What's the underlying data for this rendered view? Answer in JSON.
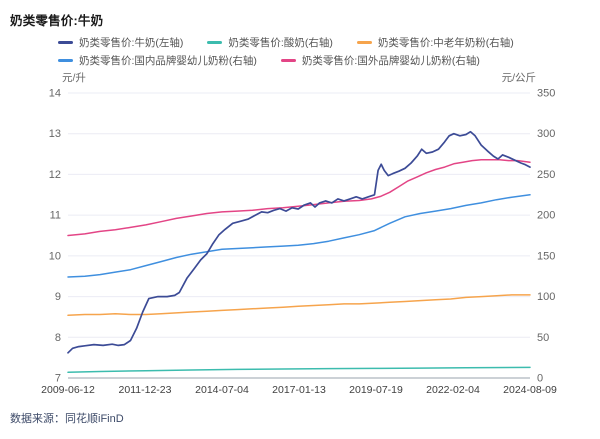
{
  "title": "奶类零售价:牛奶",
  "source": "数据来源：同花顺iFinD",
  "axes": {
    "left_unit": "元/升",
    "right_unit": "元/公斤",
    "left_ticks": [
      14,
      13,
      12,
      11,
      10,
      9,
      8,
      7
    ],
    "right_ticks": [
      350,
      300,
      250,
      200,
      150,
      100,
      50,
      0
    ],
    "x_labels": [
      "2009-06-12",
      "2011-12-23",
      "2014-07-04",
      "2017-01-13",
      "2019-07-19",
      "2022-02-04",
      "2024-08-09"
    ]
  },
  "colors": {
    "milk": "#3c4b96",
    "yogurt": "#3cbcae",
    "elder_powder": "#f6a44c",
    "domestic_infant": "#3f8fdf",
    "foreign_infant": "#e34586",
    "grid": "#ebecf4",
    "baseline": "#9aa3ad",
    "tick_text": "#666666",
    "x_tick_text": "#3f3f3f"
  },
  "chart_data": {
    "type": "line",
    "title": "奶类零售价:牛奶",
    "x_unit": "decimal_year",
    "x_range": [
      2009.45,
      2024.6
    ],
    "x_tick_labels": [
      "2009-06-12",
      "2011-12-23",
      "2014-07-04",
      "2017-01-13",
      "2019-07-19",
      "2022-02-04",
      "2024-08-09"
    ],
    "left_axis": {
      "label": "元/升",
      "range": [
        7,
        14
      ]
    },
    "right_axis": {
      "label": "元/公斤",
      "range": [
        0,
        350
      ]
    },
    "grid": true,
    "legend_position": "top",
    "series": [
      {
        "name": "奶类零售价:牛奶(左轴)",
        "axis": "left",
        "color": "#3c4b96",
        "legend_row": 1,
        "points": [
          [
            2009.45,
            7.62
          ],
          [
            2009.6,
            7.73
          ],
          [
            2009.8,
            7.77
          ],
          [
            2010.0,
            7.79
          ],
          [
            2010.3,
            7.82
          ],
          [
            2010.6,
            7.8
          ],
          [
            2010.9,
            7.83
          ],
          [
            2011.1,
            7.8
          ],
          [
            2011.3,
            7.82
          ],
          [
            2011.5,
            7.92
          ],
          [
            2011.7,
            8.22
          ],
          [
            2011.9,
            8.62
          ],
          [
            2012.1,
            8.95
          ],
          [
            2012.4,
            9.0
          ],
          [
            2012.7,
            9.0
          ],
          [
            2012.95,
            9.03
          ],
          [
            2013.1,
            9.1
          ],
          [
            2013.35,
            9.45
          ],
          [
            2013.6,
            9.7
          ],
          [
            2013.8,
            9.9
          ],
          [
            2014.0,
            10.05
          ],
          [
            2014.2,
            10.3
          ],
          [
            2014.4,
            10.52
          ],
          [
            2014.6,
            10.65
          ],
          [
            2014.85,
            10.8
          ],
          [
            2015.1,
            10.85
          ],
          [
            2015.35,
            10.9
          ],
          [
            2015.6,
            11.0
          ],
          [
            2015.8,
            11.08
          ],
          [
            2016.0,
            11.06
          ],
          [
            2016.2,
            11.12
          ],
          [
            2016.4,
            11.16
          ],
          [
            2016.6,
            11.1
          ],
          [
            2016.8,
            11.18
          ],
          [
            2017.0,
            11.15
          ],
          [
            2017.2,
            11.25
          ],
          [
            2017.4,
            11.3
          ],
          [
            2017.55,
            11.2
          ],
          [
            2017.7,
            11.3
          ],
          [
            2017.9,
            11.35
          ],
          [
            2018.1,
            11.3
          ],
          [
            2018.3,
            11.4
          ],
          [
            2018.5,
            11.35
          ],
          [
            2018.7,
            11.4
          ],
          [
            2018.9,
            11.45
          ],
          [
            2019.1,
            11.4
          ],
          [
            2019.3,
            11.45
          ],
          [
            2019.5,
            11.5
          ],
          [
            2019.62,
            12.1
          ],
          [
            2019.72,
            12.25
          ],
          [
            2019.82,
            12.1
          ],
          [
            2019.95,
            11.97
          ],
          [
            2020.1,
            12.02
          ],
          [
            2020.3,
            12.08
          ],
          [
            2020.5,
            12.15
          ],
          [
            2020.7,
            12.28
          ],
          [
            2020.9,
            12.45
          ],
          [
            2021.05,
            12.62
          ],
          [
            2021.2,
            12.52
          ],
          [
            2021.4,
            12.55
          ],
          [
            2021.6,
            12.62
          ],
          [
            2021.8,
            12.8
          ],
          [
            2021.95,
            12.95
          ],
          [
            2022.1,
            13.0
          ],
          [
            2022.3,
            12.95
          ],
          [
            2022.5,
            12.98
          ],
          [
            2022.65,
            13.05
          ],
          [
            2022.8,
            12.95
          ],
          [
            2023.0,
            12.72
          ],
          [
            2023.2,
            12.58
          ],
          [
            2023.4,
            12.45
          ],
          [
            2023.55,
            12.38
          ],
          [
            2023.7,
            12.48
          ],
          [
            2023.9,
            12.42
          ],
          [
            2024.1,
            12.35
          ],
          [
            2024.3,
            12.28
          ],
          [
            2024.45,
            12.24
          ],
          [
            2024.6,
            12.18
          ]
        ]
      },
      {
        "name": "奶类零售价:酸奶(右轴)",
        "axis": "right",
        "color": "#3cbcae",
        "legend_row": 1,
        "points": [
          [
            2009.45,
            7
          ],
          [
            2010.5,
            8
          ],
          [
            2012,
            9
          ],
          [
            2013.5,
            9.8
          ],
          [
            2015,
            10.5
          ],
          [
            2016.5,
            11
          ],
          [
            2018,
            11.5
          ],
          [
            2019.5,
            11.8
          ],
          [
            2021,
            12.2
          ],
          [
            2022.5,
            12.6
          ],
          [
            2024.6,
            13
          ]
        ]
      },
      {
        "name": "奶类零售价:中老年奶粉(右轴)",
        "axis": "right",
        "color": "#f6a44c",
        "legend_row": 1,
        "points": [
          [
            2009.45,
            77
          ],
          [
            2010,
            78
          ],
          [
            2010.5,
            78
          ],
          [
            2011,
            79
          ],
          [
            2011.5,
            78
          ],
          [
            2012,
            78
          ],
          [
            2012.5,
            79
          ],
          [
            2013,
            80
          ],
          [
            2013.5,
            81
          ],
          [
            2014,
            82
          ],
          [
            2014.5,
            83
          ],
          [
            2015,
            84
          ],
          [
            2015.5,
            85
          ],
          [
            2016,
            86
          ],
          [
            2016.5,
            87
          ],
          [
            2017,
            88
          ],
          [
            2017.5,
            89
          ],
          [
            2018,
            90
          ],
          [
            2018.5,
            91
          ],
          [
            2019,
            91
          ],
          [
            2019.5,
            92
          ],
          [
            2020,
            93
          ],
          [
            2020.5,
            94
          ],
          [
            2021,
            95
          ],
          [
            2021.5,
            96
          ],
          [
            2022,
            97
          ],
          [
            2022.5,
            99
          ],
          [
            2023,
            100
          ],
          [
            2023.5,
            101
          ],
          [
            2024,
            102
          ],
          [
            2024.6,
            102
          ]
        ]
      },
      {
        "name": "奶类零售价:国内品牌婴幼儿奶粉(右轴)",
        "axis": "right",
        "color": "#3f8fdf",
        "legend_row": 2,
        "points": [
          [
            2009.45,
            124
          ],
          [
            2010,
            125
          ],
          [
            2010.5,
            127
          ],
          [
            2011,
            130
          ],
          [
            2011.5,
            133
          ],
          [
            2012,
            138
          ],
          [
            2012.5,
            143
          ],
          [
            2013,
            148
          ],
          [
            2013.5,
            152
          ],
          [
            2014,
            155
          ],
          [
            2014.5,
            158
          ],
          [
            2015,
            159
          ],
          [
            2015.5,
            160
          ],
          [
            2016,
            161
          ],
          [
            2016.5,
            162
          ],
          [
            2017,
            163
          ],
          [
            2017.5,
            165
          ],
          [
            2018,
            168
          ],
          [
            2018.5,
            172
          ],
          [
            2019,
            176
          ],
          [
            2019.5,
            181
          ],
          [
            2020,
            190
          ],
          [
            2020.5,
            198
          ],
          [
            2021,
            202
          ],
          [
            2021.5,
            205
          ],
          [
            2022,
            208
          ],
          [
            2022.5,
            212
          ],
          [
            2023,
            215
          ],
          [
            2023.5,
            219
          ],
          [
            2024,
            222
          ],
          [
            2024.6,
            225
          ]
        ]
      },
      {
        "name": "奶类零售价:国外品牌婴幼儿奶粉(右轴)",
        "axis": "right",
        "color": "#e34586",
        "legend_row": 2,
        "points": [
          [
            2009.45,
            175
          ],
          [
            2010,
            177
          ],
          [
            2010.5,
            180
          ],
          [
            2011,
            182
          ],
          [
            2011.5,
            185
          ],
          [
            2012,
            188
          ],
          [
            2012.5,
            192
          ],
          [
            2013,
            196
          ],
          [
            2013.5,
            199
          ],
          [
            2014,
            202
          ],
          [
            2014.5,
            204
          ],
          [
            2015,
            205
          ],
          [
            2015.5,
            206
          ],
          [
            2016,
            208
          ],
          [
            2016.5,
            209
          ],
          [
            2017,
            211
          ],
          [
            2017.5,
            213
          ],
          [
            2018,
            215
          ],
          [
            2018.5,
            217
          ],
          [
            2019,
            218
          ],
          [
            2019.4,
            220
          ],
          [
            2019.7,
            223
          ],
          [
            2020,
            228
          ],
          [
            2020.3,
            235
          ],
          [
            2020.6,
            242
          ],
          [
            2020.9,
            247
          ],
          [
            2021.2,
            252
          ],
          [
            2021.5,
            256
          ],
          [
            2021.8,
            259
          ],
          [
            2022.1,
            263
          ],
          [
            2022.4,
            265
          ],
          [
            2022.7,
            267
          ],
          [
            2023,
            268
          ],
          [
            2023.3,
            268
          ],
          [
            2023.6,
            268
          ],
          [
            2023.9,
            267
          ],
          [
            2024.2,
            267
          ],
          [
            2024.6,
            265
          ]
        ]
      }
    ]
  }
}
